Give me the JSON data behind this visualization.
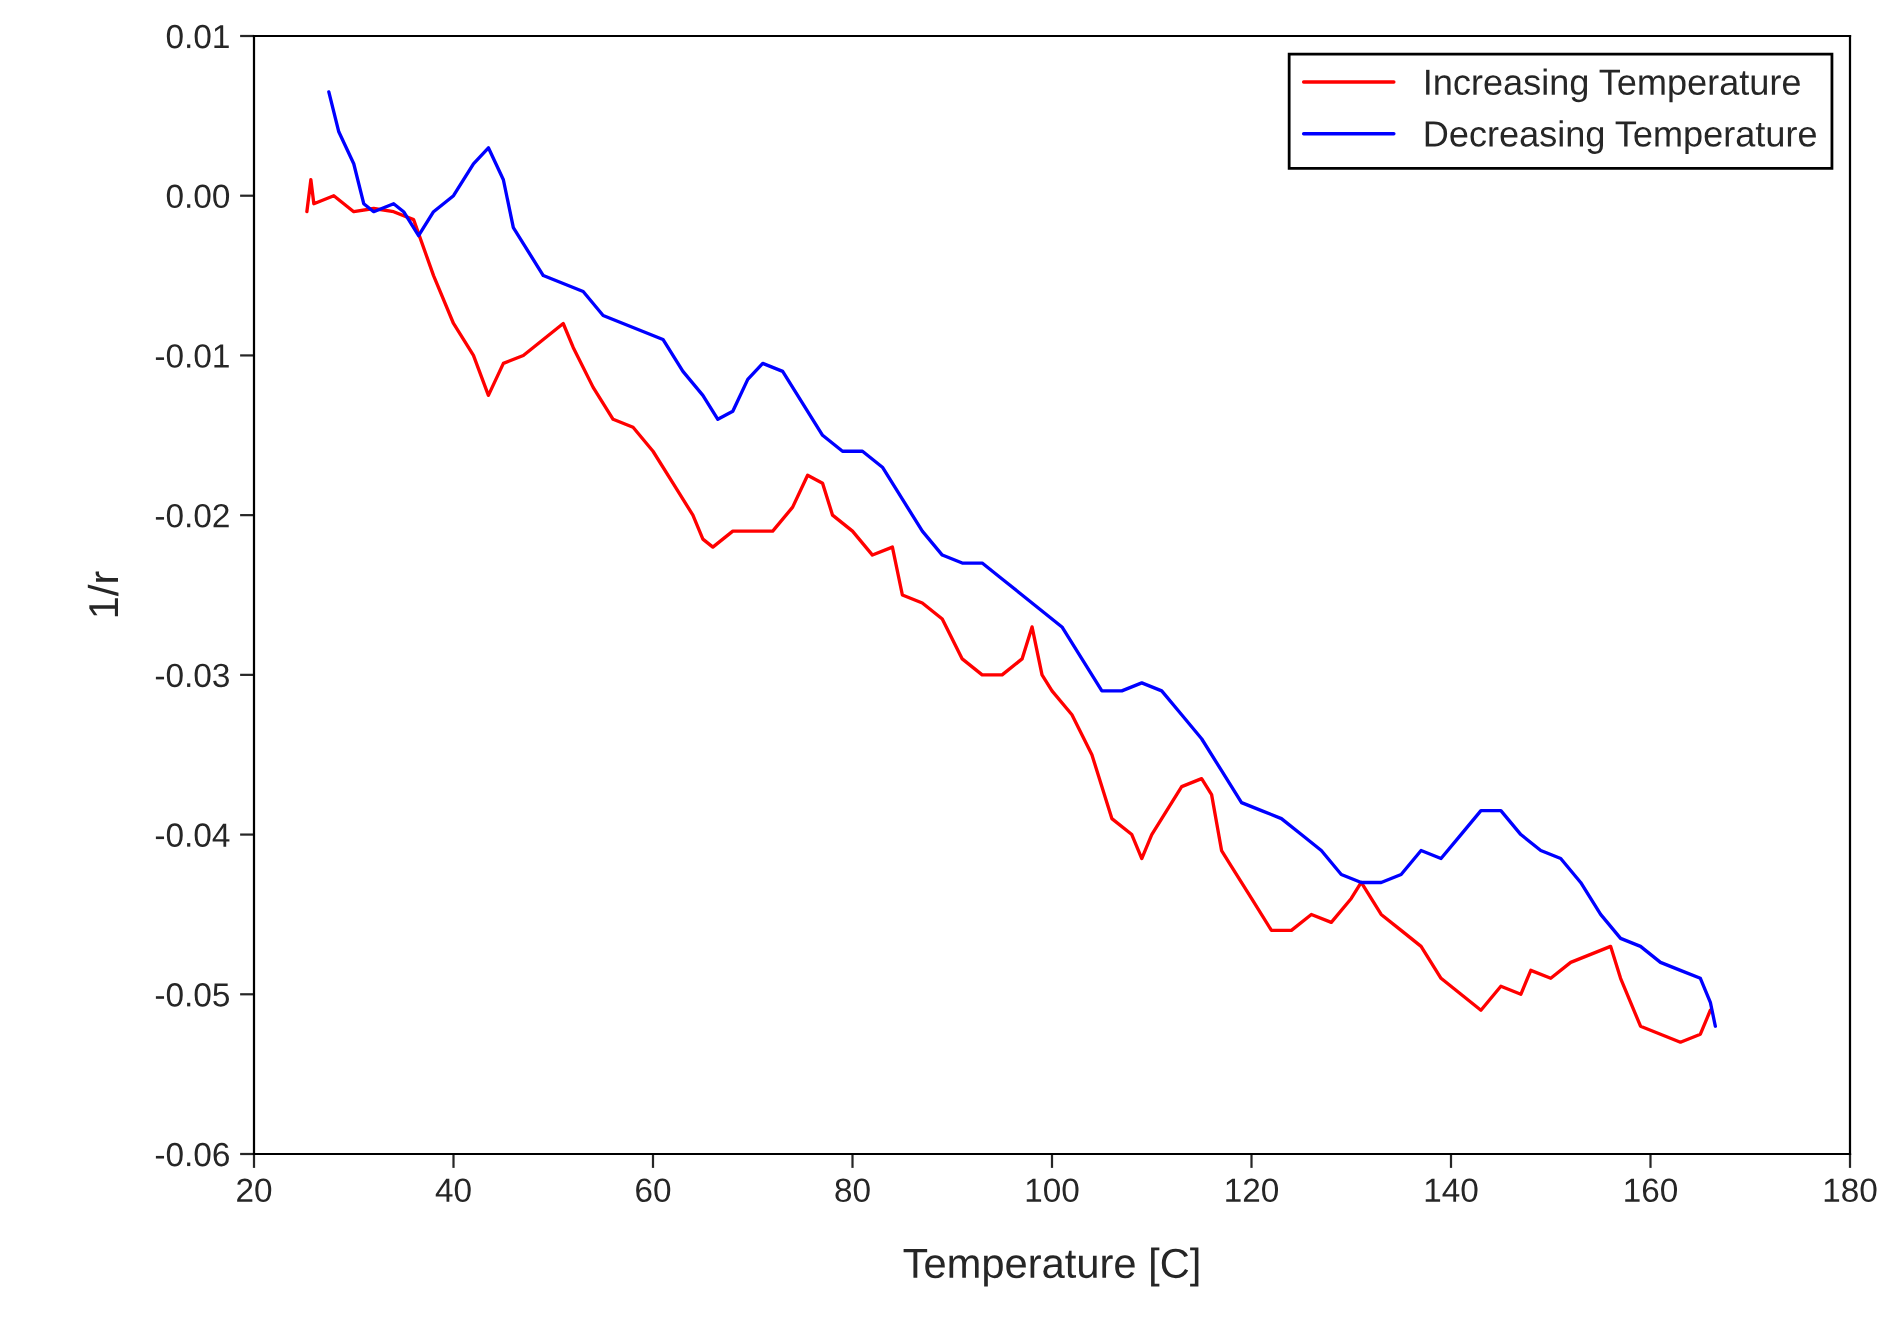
{
  "chart_data": {
    "type": "line",
    "xlabel": "Temperature [C]",
    "ylabel": "1/r",
    "xlim": [
      20,
      180
    ],
    "xticks": [
      20,
      40,
      60,
      80,
      100,
      120,
      140,
      160,
      180
    ],
    "ylim": [
      -0.06,
      0.01
    ],
    "yticks": [
      {
        "value": -0.06,
        "label": "-0.06"
      },
      {
        "value": -0.05,
        "label": "-0.05"
      },
      {
        "value": -0.04,
        "label": "-0.04"
      },
      {
        "value": -0.03,
        "label": "-0.03"
      },
      {
        "value": -0.02,
        "label": "-0.02"
      },
      {
        "value": -0.01,
        "label": "-0.01"
      },
      {
        "value": 0.0,
        "label": "0.00"
      },
      {
        "value": 0.01,
        "label": "0.01"
      }
    ],
    "grid": false,
    "legend": "top right",
    "marker": "none",
    "line_style": "solid",
    "series": [
      {
        "name": "Increasing Temperature",
        "color": "#ff0000",
        "x": [
          25.3,
          25.7,
          26,
          28,
          30,
          32,
          34,
          36,
          38,
          40,
          42,
          43.5,
          45,
          47,
          49,
          51,
          52,
          54,
          56,
          58,
          60,
          62,
          64,
          65,
          66,
          68,
          70,
          72,
          74,
          75.5,
          77,
          78,
          80,
          82,
          84,
          85,
          87,
          89,
          91,
          93,
          95,
          97,
          98,
          99,
          100,
          102,
          104,
          106,
          108,
          109,
          110,
          112,
          113,
          115,
          116,
          117,
          118,
          120,
          122,
          124,
          126,
          128,
          130,
          131,
          133,
          135,
          137,
          139,
          141,
          143,
          145,
          147,
          148,
          150,
          152,
          154,
          156,
          157,
          159,
          161,
          163,
          165,
          166
        ],
        "values": [
          -0.001,
          0.001,
          -0.0005,
          0.0,
          -0.001,
          -0.0008,
          -0.001,
          -0.0015,
          -0.005,
          -0.008,
          -0.01,
          -0.0125,
          -0.0105,
          -0.01,
          -0.009,
          -0.008,
          -0.0095,
          -0.012,
          -0.014,
          -0.0145,
          -0.016,
          -0.018,
          -0.02,
          -0.0215,
          -0.022,
          -0.021,
          -0.021,
          -0.021,
          -0.0195,
          -0.0175,
          -0.018,
          -0.02,
          -0.021,
          -0.0225,
          -0.022,
          -0.025,
          -0.0255,
          -0.0265,
          -0.029,
          -0.03,
          -0.03,
          -0.029,
          -0.027,
          -0.03,
          -0.031,
          -0.0325,
          -0.035,
          -0.039,
          -0.04,
          -0.0415,
          -0.04,
          -0.038,
          -0.037,
          -0.0365,
          -0.0375,
          -0.041,
          -0.042,
          -0.044,
          -0.046,
          -0.046,
          -0.045,
          -0.0455,
          -0.044,
          -0.043,
          -0.045,
          -0.046,
          -0.047,
          -0.049,
          -0.05,
          -0.051,
          -0.0495,
          -0.05,
          -0.0485,
          -0.049,
          -0.048,
          -0.0475,
          -0.047,
          -0.049,
          -0.052,
          -0.0525,
          -0.053,
          -0.0525,
          -0.051
        ]
      },
      {
        "name": "Decreasing Temperature",
        "color": "#0000ff",
        "x": [
          27.5,
          28.5,
          30,
          31,
          32,
          34,
          35,
          36.5,
          38,
          40,
          42,
          43.5,
          45,
          46,
          47,
          49,
          51,
          53,
          55,
          57,
          59,
          61,
          63,
          65,
          66.5,
          68,
          69.5,
          71,
          73,
          75,
          77,
          79,
          81,
          83,
          85,
          87,
          89,
          91,
          93,
          95,
          97,
          99,
          101,
          103,
          105,
          107,
          109,
          111,
          113,
          115,
          117,
          119,
          121,
          123,
          125,
          127,
          129,
          131,
          133,
          135,
          137,
          139,
          141,
          143,
          145,
          147,
          149,
          151,
          153,
          155,
          157,
          159,
          161,
          163,
          165,
          166,
          166.5
        ],
        "values": [
          0.0065,
          0.004,
          0.002,
          -0.0005,
          -0.001,
          -0.0005,
          -0.001,
          -0.0025,
          -0.001,
          0.0,
          0.002,
          0.003,
          0.001,
          -0.002,
          -0.003,
          -0.005,
          -0.0055,
          -0.006,
          -0.0075,
          -0.008,
          -0.0085,
          -0.009,
          -0.011,
          -0.0125,
          -0.014,
          -0.0135,
          -0.0115,
          -0.0105,
          -0.011,
          -0.013,
          -0.015,
          -0.016,
          -0.016,
          -0.017,
          -0.019,
          -0.021,
          -0.0225,
          -0.023,
          -0.023,
          -0.024,
          -0.025,
          -0.026,
          -0.027,
          -0.029,
          -0.031,
          -0.031,
          -0.0305,
          -0.031,
          -0.0325,
          -0.034,
          -0.036,
          -0.038,
          -0.0385,
          -0.039,
          -0.04,
          -0.041,
          -0.0425,
          -0.043,
          -0.043,
          -0.0425,
          -0.041,
          -0.0415,
          -0.04,
          -0.0385,
          -0.0385,
          -0.04,
          -0.041,
          -0.0415,
          -0.043,
          -0.045,
          -0.0465,
          -0.047,
          -0.048,
          -0.0485,
          -0.049,
          -0.0505,
          -0.052
        ]
      }
    ]
  }
}
